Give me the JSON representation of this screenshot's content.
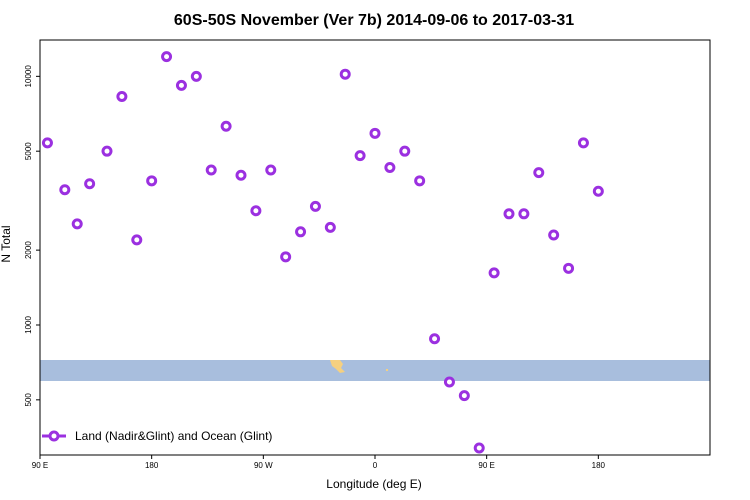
{
  "chart_data": {
    "type": "scatter",
    "title": "60S-50S November (Ver 7b)   2014-09-06 to 2017-03-31",
    "xlabel": "Longitude (deg E)",
    "ylabel": "N Total",
    "y_scale": "log",
    "xlim": [
      -90,
      180
    ],
    "ylim": [
      300,
      14000
    ],
    "x_ticks": [
      {
        "value": -90,
        "label": "90 E"
      },
      {
        "value": -45,
        "label": "180"
      },
      {
        "value": 0,
        "label": "90 W"
      },
      {
        "value": 45,
        "label": "0"
      },
      {
        "value": 90,
        "label": "90 E"
      },
      {
        "value": 135,
        "label": "180"
      }
    ],
    "y_ticks": [
      {
        "value": 500,
        "label": "500"
      },
      {
        "value": 1000,
        "label": "1000"
      },
      {
        "value": 2000,
        "label": "2000"
      },
      {
        "value": 5000,
        "label": "5000"
      },
      {
        "value": 10000,
        "label": "10000"
      }
    ],
    "band": {
      "lat_range": [
        -60,
        -50
      ],
      "color": "#a8bedd",
      "land_color": "#f5d080"
    },
    "legend": {
      "position": "bottom-left",
      "entries": [
        {
          "label": "Land (Nadir&Glint) and Ocean (Glint)",
          "color": "#9b30e0"
        }
      ]
    },
    "series": [
      {
        "color": "#9b30e0",
        "marker": "open-circle",
        "x": [
          -87,
          -80,
          -75,
          -70,
          -63,
          -57,
          -51,
          -45,
          -39,
          -33,
          -27,
          -21,
          -15,
          -9,
          -3,
          3,
          9,
          15,
          21,
          27,
          33,
          39,
          45,
          51,
          57,
          63,
          69,
          75,
          81,
          87,
          93,
          99,
          105,
          111,
          117,
          123,
          129,
          135
        ],
        "y": [
          5400,
          3500,
          2550,
          3700,
          5000,
          8300,
          2200,
          3800,
          12000,
          9200,
          10000,
          4200,
          6300,
          4000,
          2880,
          4200,
          1880,
          2370,
          3000,
          2470,
          10200,
          4800,
          5900,
          4300,
          5000,
          3800,
          880,
          590,
          520,
          320,
          1620,
          2800,
          2800,
          4100,
          2300,
          1690,
          5400,
          3450
        ]
      }
    ]
  }
}
